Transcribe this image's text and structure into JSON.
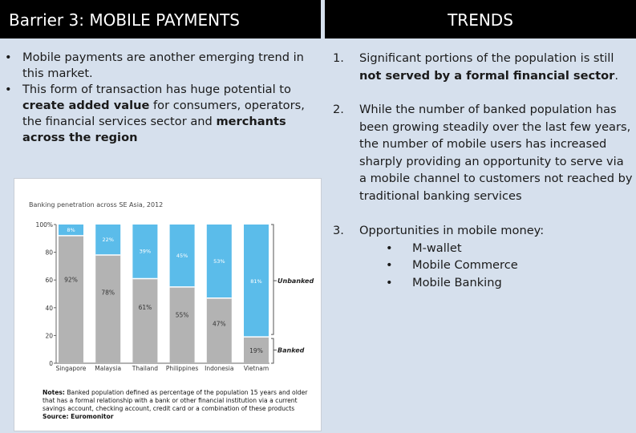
{
  "header": {
    "left_title": "Barrier 3: MOBILE PAYMENTS",
    "right_title": "TRENDS"
  },
  "left": {
    "bullet_symbol": "•",
    "bullet1": "Mobile payments are another emerging trend in this market.",
    "bullet2": {
      "t1": "This form of transaction has huge potential to ",
      "b1": "create added value",
      "t2": " for consumers, operators, the financial services sector and ",
      "b2": "merchants across the region"
    }
  },
  "chart_data": {
    "type": "bar",
    "stacked": true,
    "title": "Banking penetration across SE Asia, 2012",
    "categories": [
      "Singapore",
      "Malaysia",
      "Thailand",
      "Philippines",
      "Indonesia",
      "Vietnam"
    ],
    "series": [
      {
        "name": "Banked",
        "color": "#b3b3b3",
        "values": [
          92,
          78,
          61,
          55,
          47,
          19
        ],
        "labels": [
          "92%",
          "78%",
          "61%",
          "55%",
          "47%",
          "19%"
        ]
      },
      {
        "name": "Unbanked",
        "color": "#5bbcea",
        "values": [
          8,
          22,
          39,
          45,
          53,
          81
        ],
        "labels": [
          "8%",
          "22%",
          "39%",
          "45%",
          "53%",
          "81%"
        ]
      }
    ],
    "yticks": [
      "100%",
      "80",
      "60",
      "40",
      "20",
      "0"
    ],
    "ylim": [
      0,
      100
    ],
    "bracket_unbanked": "Unbanked",
    "bracket_banked": "Banked",
    "notes_label": "Notes:",
    "notes": " Banked population defined as percentage of the population 15 years and older that has a formal relationship with a bank or other financial institution via a current savings account, checking account, credit card or a combination of these products",
    "source": "Source: Euromonitor"
  },
  "right": {
    "items": [
      {
        "num": "1.",
        "text": "Significant portions of the population is still ",
        "bold": "not served by a formal financial sector",
        "tail": "."
      },
      {
        "num": "2.",
        "text": "While the number of banked population has been growing steadily over the last few years, the number of mobile users has increased sharply providing an opportunity to serve via a mobile channel to customers not reached by traditional banking services"
      },
      {
        "num": "3.",
        "text": "Opportunities in mobile money:"
      }
    ],
    "sub_bullet": "•",
    "subitems": [
      "M-wallet",
      "Mobile Commerce",
      "Mobile Banking"
    ]
  }
}
